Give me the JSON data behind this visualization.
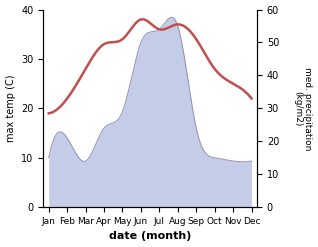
{
  "months": [
    "Jan",
    "Feb",
    "Mar",
    "Apr",
    "May",
    "Jun",
    "Jul",
    "Aug",
    "Sep",
    "Oct",
    "Nov",
    "Dec"
  ],
  "temperature": [
    19,
    22,
    28,
    33,
    34,
    38,
    36,
    37,
    34,
    28,
    25,
    22
  ],
  "precipitation": [
    15,
    21,
    14,
    24,
    29,
    50,
    54,
    55,
    24,
    15,
    14,
    14
  ],
  "temp_color": "#c0504d",
  "precip_color_fill": "#c5cce8",
  "precip_color_line": "#9999bb",
  "temp_ylim": [
    0,
    40
  ],
  "precip_ylim": [
    0,
    60
  ],
  "xlabel": "date (month)",
  "ylabel_left": "max temp (C)",
  "ylabel_right": "med. precipitation\n(kg/m2)",
  "temp_linewidth": 1.8,
  "precip_linewidth": 0.8
}
